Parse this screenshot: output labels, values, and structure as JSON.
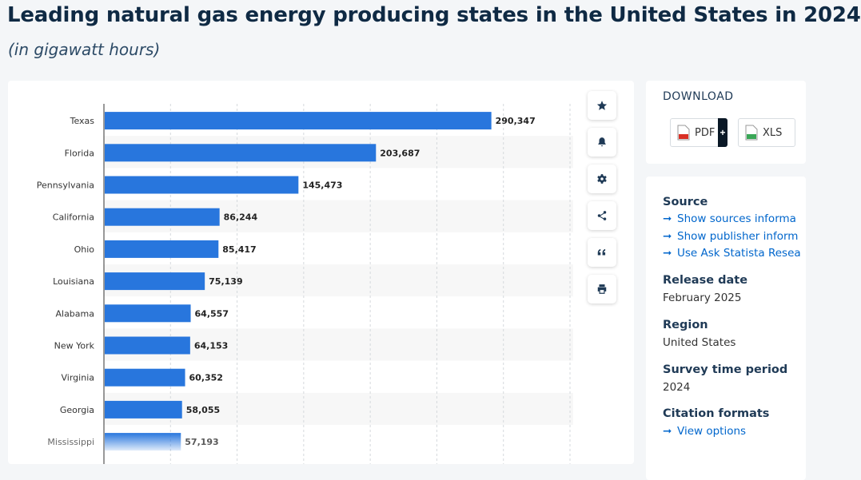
{
  "header": {
    "title": "Leading natural gas energy producing states in the United States in 2024",
    "subtitle": "(in gigawatt hours)"
  },
  "chart_data": {
    "type": "bar",
    "orientation": "horizontal",
    "categories": [
      "Texas",
      "Florida",
      "Pennsylvania",
      "California",
      "Ohio",
      "Louisiana",
      "Alabama",
      "New York",
      "Virginia",
      "Georgia",
      "Mississippi"
    ],
    "values": [
      290347,
      203687,
      145473,
      86244,
      85417,
      75139,
      64557,
      64153,
      60352,
      58055,
      57193
    ],
    "value_labels": [
      "290,347",
      "203,687",
      "145,473",
      "86,244",
      "85,417",
      "75,139",
      "64,557",
      "64,153",
      "60,352",
      "58,055",
      "57,193"
    ],
    "xlim": [
      0,
      350000
    ],
    "grid": true,
    "colors": {
      "bar": "#2876dd",
      "alt_row": "#f7f7f7"
    }
  },
  "toolbar": {
    "items": [
      {
        "name": "favorite-button",
        "icon": "star-icon"
      },
      {
        "name": "notification-button",
        "icon": "bell-icon"
      },
      {
        "name": "settings-button",
        "icon": "gear-icon"
      },
      {
        "name": "share-button",
        "icon": "share-icon"
      },
      {
        "name": "cite-button",
        "icon": "quote-icon"
      },
      {
        "name": "print-button",
        "icon": "printer-icon"
      }
    ]
  },
  "download": {
    "title": "DOWNLOAD",
    "pdf_label": "PDF",
    "xls_label": "XLS",
    "plus_label": "+"
  },
  "info": {
    "source_heading": "Source",
    "source_links": [
      "Show sources informa",
      "Show publisher inform",
      "Use Ask Statista Resea"
    ],
    "release_heading": "Release date",
    "release_value": "February 2025",
    "region_heading": "Region",
    "region_value": "United States",
    "survey_heading": "Survey time period",
    "survey_value": "2024",
    "citation_heading": "Citation formats",
    "citation_link": "View options"
  }
}
